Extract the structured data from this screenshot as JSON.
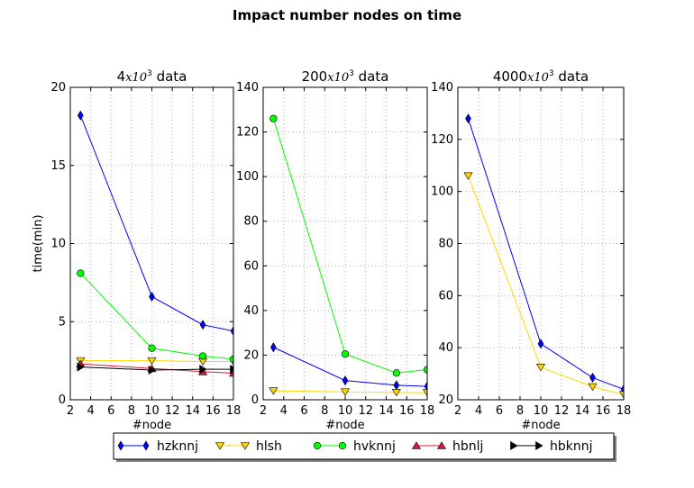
{
  "figure": {
    "title": "Impact number nodes on time",
    "legend_placement": "bottom-center"
  },
  "series_styles": [
    {
      "name": "hzknnj",
      "color": "#0000ff",
      "marker": "thin-diamond"
    },
    {
      "name": "hlsh",
      "color": "#ffd700",
      "marker": "triangle-down"
    },
    {
      "name": "hvknnj",
      "color": "#00ff00",
      "marker": "circle"
    },
    {
      "name": "hbnlj",
      "color": "#dc143c",
      "marker": "triangle-up"
    },
    {
      "name": "hbknnj",
      "color": "#000000",
      "marker": "triangle-right"
    }
  ],
  "chart_data": [
    {
      "type": "line",
      "title_prefix": "4",
      "title_math": "x10",
      "title_exp": "3",
      "title_suffix": " data",
      "xlabel": "#node",
      "ylabel": "time(min)",
      "xlim": [
        2,
        18
      ],
      "ylim": [
        0,
        20
      ],
      "xticks": [
        2,
        4,
        6,
        8,
        10,
        12,
        14,
        16,
        18
      ],
      "yticks": [
        0,
        5,
        10,
        15,
        20
      ],
      "grid": true,
      "x": [
        3,
        10,
        15,
        18
      ],
      "series": [
        {
          "name": "hzknnj",
          "values": [
            18.2,
            6.6,
            4.8,
            4.4
          ]
        },
        {
          "name": "hlsh",
          "values": [
            2.5,
            2.5,
            2.45,
            2.45
          ]
        },
        {
          "name": "hvknnj",
          "values": [
            8.1,
            3.3,
            2.8,
            2.6
          ]
        },
        {
          "name": "hbnlj",
          "values": [
            2.3,
            2.0,
            1.8,
            1.7
          ]
        },
        {
          "name": "hbknnj",
          "values": [
            2.1,
            1.9,
            1.95,
            1.95
          ]
        }
      ]
    },
    {
      "type": "line",
      "title_prefix": "200",
      "title_math": "x10",
      "title_exp": "3",
      "title_suffix": " data",
      "xlabel": "#node",
      "ylabel": "",
      "xlim": [
        2,
        18
      ],
      "ylim": [
        0,
        140
      ],
      "xticks": [
        2,
        4,
        6,
        8,
        10,
        12,
        14,
        16,
        18
      ],
      "yticks": [
        0,
        20,
        40,
        60,
        80,
        100,
        120,
        140
      ],
      "grid": true,
      "x": [
        3,
        10,
        15,
        18
      ],
      "series": [
        {
          "name": "hzknnj",
          "values": [
            23.5,
            8.6,
            6.5,
            6.0
          ]
        },
        {
          "name": "hlsh",
          "values": [
            4.0,
            3.5,
            3.3,
            3.2
          ]
        },
        {
          "name": "hvknnj",
          "values": [
            126,
            20.5,
            12.0,
            13.5
          ]
        }
      ]
    },
    {
      "type": "line",
      "title_prefix": "4000",
      "title_math": "x10",
      "title_exp": "3",
      "title_suffix": " data",
      "xlabel": "#node",
      "ylabel": "",
      "xlim": [
        2,
        18
      ],
      "ylim": [
        20,
        140
      ],
      "xticks": [
        2,
        4,
        6,
        8,
        10,
        12,
        14,
        16,
        18
      ],
      "yticks": [
        20,
        40,
        60,
        80,
        100,
        120,
        140
      ],
      "grid": true,
      "x": [
        3,
        10,
        15,
        18
      ],
      "series": [
        {
          "name": "hzknnj",
          "values": [
            128,
            41.5,
            28.5,
            24.0
          ]
        },
        {
          "name": "hlsh",
          "values": [
            106,
            32.5,
            25.0,
            22.0
          ]
        }
      ]
    }
  ]
}
